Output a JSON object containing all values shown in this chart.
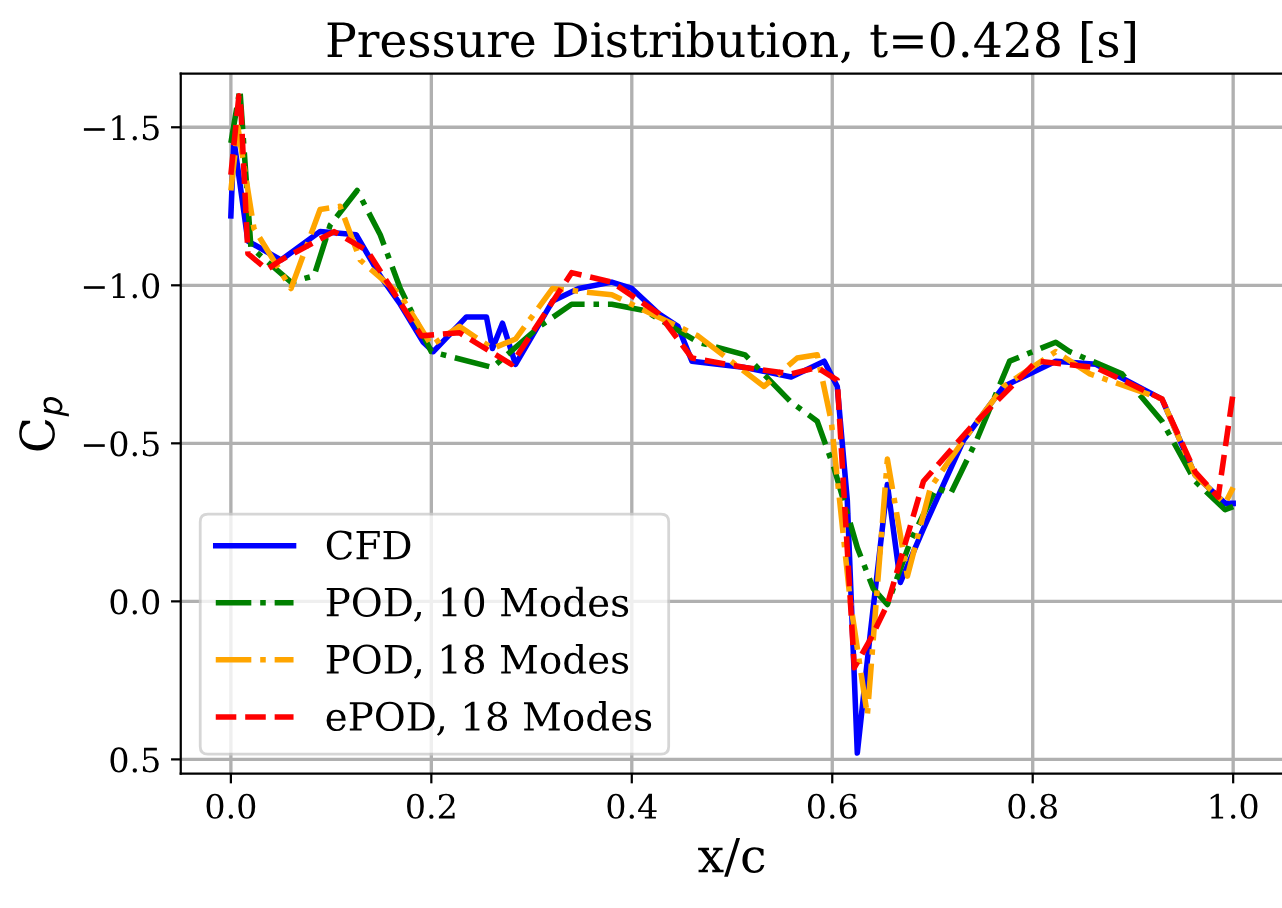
{
  "chart_data": {
    "type": "line",
    "title": "Pressure Distribution, t=0.428 [s]",
    "xlabel": "x/c",
    "ylabel": "C$_{p}$",
    "xlim": [
      -0.05,
      1.05
    ],
    "xticks": [
      {
        "value": 0,
        "label": "0.0"
      },
      0.2,
      0.4,
      0.6,
      0.8,
      {
        "value": 1,
        "label": "1.0"
      }
    ],
    "ylim": [
      0.545,
      -1.67
    ],
    "yticks": [
      {
        "value": -1.5,
        "label": "−1.5"
      },
      {
        "value": -1,
        "label": "−1.0"
      },
      {
        "value": -0.5,
        "label": "−0.5"
      },
      {
        "value": 0,
        "label": "0.0"
      },
      0.5
    ],
    "grid": true,
    "legend": "bottom left",
    "series": [
      {
        "name": "CFD",
        "color": "#0000ff",
        "line_style": "solid",
        "x": [
          0,
          0.003,
          0.017,
          0.05,
          0.089,
          0.125,
          0.149,
          0.169,
          0.192,
          0.202,
          0.235,
          0.255,
          0.261,
          0.271,
          0.284,
          0.321,
          0.347,
          0.38,
          0.4,
          0.427,
          0.446,
          0.46,
          0.513,
          0.559,
          0.592,
          0.605,
          0.615,
          0.625,
          0.638,
          0.655,
          0.668,
          0.691,
          0.731,
          0.771,
          0.823,
          0.863,
          0.929,
          0.962,
          0.992,
          1.0
        ],
        "values": [
          -1.22,
          -1.46,
          -1.14,
          -1.08,
          -1.17,
          -1.16,
          -1.03,
          -0.94,
          -0.82,
          -0.79,
          -0.9,
          -0.9,
          -0.8,
          -0.88,
          -0.75,
          -0.95,
          -0.99,
          -1.01,
          -0.99,
          -0.91,
          -0.87,
          -0.76,
          -0.74,
          -0.71,
          -0.76,
          -0.68,
          -0.32,
          0.48,
          0.1,
          -0.37,
          -0.06,
          -0.23,
          -0.51,
          -0.68,
          -0.76,
          -0.75,
          -0.64,
          -0.4,
          -0.31,
          -0.31
        ]
      },
      {
        "name": "POD, 10 Modes",
        "color": "#008000",
        "line_style": "dashdot",
        "x": [
          0,
          0.009,
          0.02,
          0.06,
          0.083,
          0.099,
          0.126,
          0.149,
          0.169,
          0.2,
          0.261,
          0.308,
          0.34,
          0.38,
          0.413,
          0.466,
          0.513,
          0.559,
          0.585,
          0.602,
          0.625,
          0.641,
          0.655,
          0.678,
          0.704,
          0.718,
          0.744,
          0.777,
          0.823,
          0.837,
          0.889,
          0.929,
          0.962,
          0.992,
          1.0
        ],
        "values": [
          -1.45,
          -1.62,
          -1.12,
          -1.01,
          -1.03,
          -1.19,
          -1.3,
          -1.16,
          -0.99,
          -0.79,
          -0.74,
          -0.87,
          -0.94,
          -0.94,
          -0.92,
          -0.82,
          -0.78,
          -0.63,
          -0.57,
          -0.42,
          -0.17,
          -0.04,
          0.01,
          -0.19,
          -0.36,
          -0.34,
          -0.51,
          -0.76,
          -0.82,
          -0.79,
          -0.72,
          -0.57,
          -0.38,
          -0.29,
          -0.3
        ]
      },
      {
        "name": "POD, 18 Modes",
        "color": "#ffa500",
        "line_style": "dashdot",
        "x": [
          0,
          0.007,
          0.023,
          0.06,
          0.089,
          0.109,
          0.129,
          0.169,
          0.2,
          0.228,
          0.261,
          0.284,
          0.321,
          0.38,
          0.466,
          0.532,
          0.565,
          0.585,
          0.599,
          0.618,
          0.635,
          0.655,
          0.675,
          0.698,
          0.731,
          0.771,
          0.823,
          0.857,
          0.929,
          0.962,
          0.992,
          1.0
        ],
        "values": [
          -1.3,
          -1.5,
          -1.18,
          -0.99,
          -1.24,
          -1.25,
          -1.08,
          -0.97,
          -0.81,
          -0.87,
          -0.8,
          -0.83,
          -0.99,
          -0.97,
          -0.84,
          -0.68,
          -0.77,
          -0.78,
          -0.57,
          0.0,
          0.36,
          -0.45,
          -0.08,
          -0.36,
          -0.51,
          -0.68,
          -0.79,
          -0.72,
          -0.64,
          -0.4,
          -0.31,
          -0.36
        ]
      },
      {
        "name": "ePOD, 18 Modes",
        "color": "#ff0000",
        "line_style": "dashed",
        "x": [
          0,
          0.008,
          0.01,
          0.017,
          0.036,
          0.05,
          0.103,
          0.136,
          0.19,
          0.228,
          0.28,
          0.34,
          0.38,
          0.427,
          0.46,
          0.513,
          0.559,
          0.585,
          0.605,
          0.622,
          0.638,
          0.655,
          0.691,
          0.738,
          0.804,
          0.863,
          0.929,
          0.962,
          0.985,
          1.0
        ],
        "values": [
          -1.35,
          -1.6,
          -1.56,
          -1.1,
          -1.05,
          -1.08,
          -1.17,
          -1.11,
          -0.84,
          -0.85,
          -0.75,
          -1.04,
          -1.01,
          -0.91,
          -0.77,
          -0.74,
          -0.72,
          -0.74,
          -0.7,
          0.21,
          0.12,
          0.01,
          -0.38,
          -0.55,
          -0.76,
          -0.74,
          -0.64,
          -0.41,
          -0.33,
          -0.66
        ]
      }
    ]
  }
}
